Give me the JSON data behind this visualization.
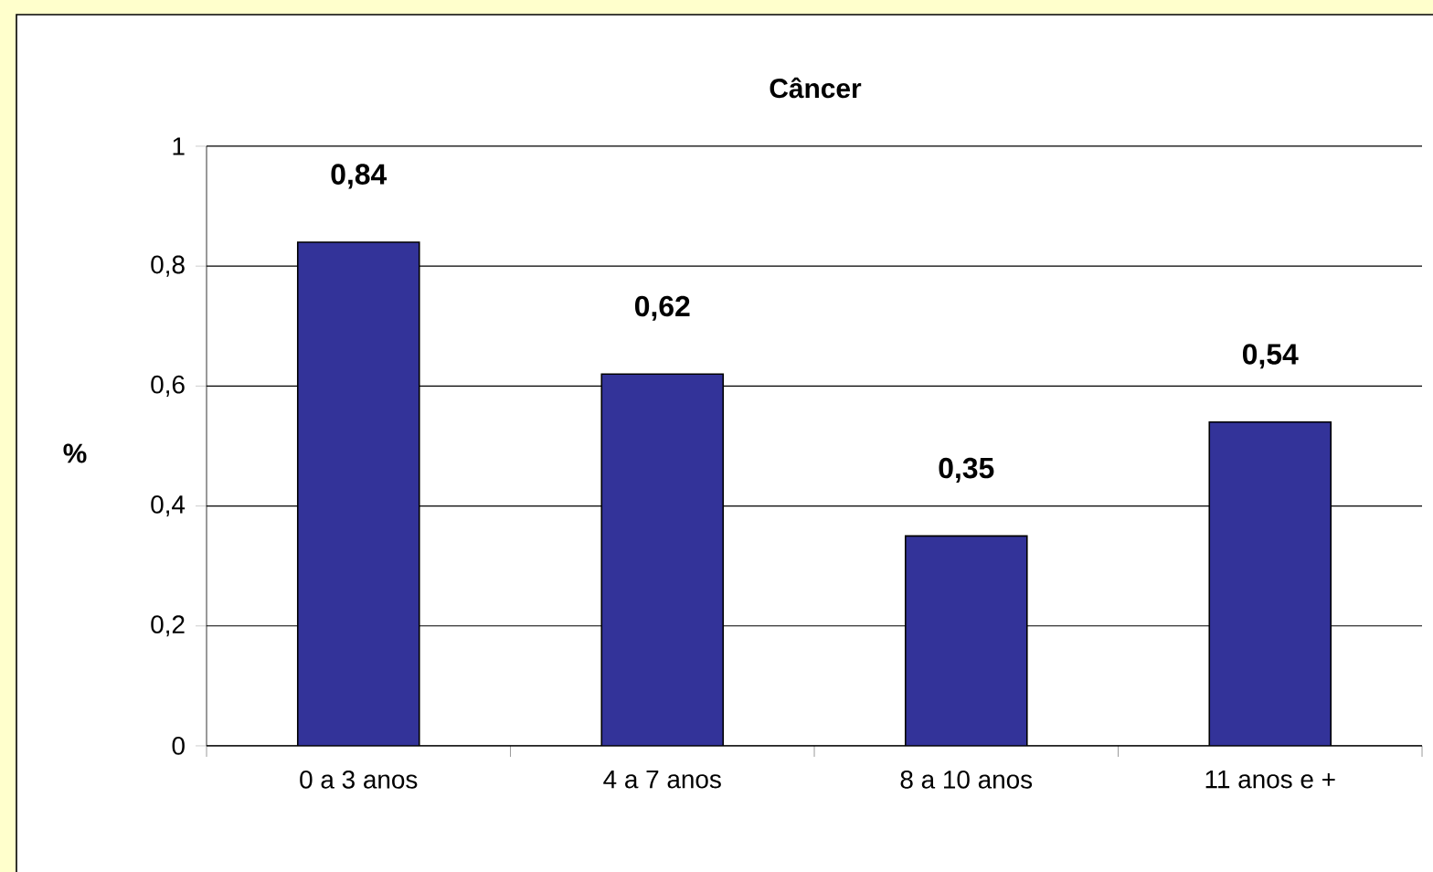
{
  "chart_data": {
    "type": "bar",
    "title": "Câncer",
    "ylabel": "%",
    "categories": [
      "0 a 3 anos",
      "4 a 7 anos",
      "8 a 10 anos",
      "11 anos e +"
    ],
    "values": [
      0.84,
      0.62,
      0.35,
      0.54
    ],
    "value_labels": [
      "0,84",
      "0,62",
      "0,35",
      "0,54"
    ],
    "color": "#333399",
    "ylim": [
      0,
      1
    ],
    "yticks": [
      0,
      {
        "value": 0.2,
        "label": "0,2"
      },
      {
        "value": 0.4,
        "label": "0,4"
      },
      {
        "value": 0.6,
        "label": "0,6"
      },
      {
        "value": 0.8,
        "label": "0,8"
      },
      1
    ],
    "grid": "y"
  }
}
